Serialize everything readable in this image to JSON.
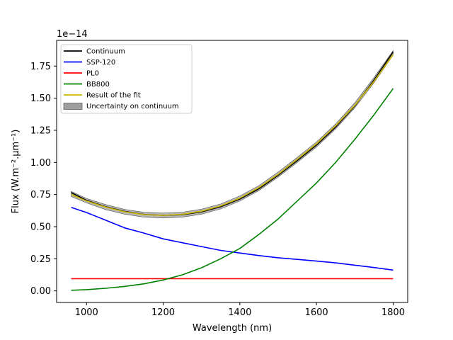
{
  "chart_data": {
    "type": "line",
    "title": "",
    "xlabel": "Wavelength (nm)",
    "ylabel": "Flux (W.m⁻².µm⁻¹)",
    "y_multiplier_label": "1e−14",
    "xlim": [
      922,
      1838
    ],
    "ylim": [
      -0.09,
      1.95
    ],
    "x_ticks": [
      1000,
      1200,
      1400,
      1600,
      1800
    ],
    "x_tick_labels": [
      "1000",
      "1200",
      "1400",
      "1600",
      "1800"
    ],
    "y_ticks": [
      0.0,
      0.25,
      0.5,
      0.75,
      1.0,
      1.25,
      1.5,
      1.75
    ],
    "y_tick_labels": [
      "0.00",
      "0.25",
      "0.50",
      "0.75",
      "1.00",
      "1.25",
      "1.50",
      "1.75"
    ],
    "legend_position": "upper-left",
    "legend": [
      {
        "label": "Continuum",
        "color": "#000000",
        "kind": "line"
      },
      {
        "label": "SSP-120",
        "color": "#0000ff",
        "kind": "line"
      },
      {
        "label": "PL0",
        "color": "#ff0000",
        "kind": "line"
      },
      {
        "label": "BB800",
        "color": "#008000",
        "kind": "line"
      },
      {
        "label": "Result of the fit",
        "color": "#ccb800",
        "kind": "line"
      },
      {
        "label": "Uncertainty on continuum",
        "color": "#9e9e9e",
        "kind": "patch"
      }
    ],
    "x": [
      960,
      1000,
      1050,
      1100,
      1150,
      1200,
      1250,
      1300,
      1350,
      1400,
      1450,
      1500,
      1550,
      1600,
      1650,
      1700,
      1750,
      1800
    ],
    "series": [
      {
        "name": "Continuum",
        "color": "#000000",
        "values": [
          0.765,
          0.705,
          0.655,
          0.618,
          0.595,
          0.588,
          0.593,
          0.615,
          0.655,
          0.715,
          0.795,
          0.9,
          1.015,
          1.135,
          1.275,
          1.44,
          1.64,
          1.86
        ]
      },
      {
        "name": "SSP-120",
        "color": "#0000ff",
        "values": [
          0.65,
          0.61,
          0.55,
          0.49,
          0.45,
          0.405,
          0.375,
          0.345,
          0.315,
          0.295,
          0.275,
          0.258,
          0.245,
          0.232,
          0.218,
          0.2,
          0.182,
          0.162
        ]
      },
      {
        "name": "PL0",
        "color": "#ff0000",
        "values": [
          0.095,
          0.095,
          0.095,
          0.095,
          0.095,
          0.095,
          0.095,
          0.095,
          0.095,
          0.095,
          0.095,
          0.095,
          0.095,
          0.095,
          0.095,
          0.095,
          0.095,
          0.095
        ]
      },
      {
        "name": "BB800",
        "color": "#008000",
        "values": [
          0.005,
          0.01,
          0.02,
          0.035,
          0.055,
          0.085,
          0.125,
          0.18,
          0.25,
          0.33,
          0.44,
          0.56,
          0.7,
          0.84,
          1.0,
          1.18,
          1.37,
          1.575
        ]
      },
      {
        "name": "Result of the fit",
        "color": "#ccb800",
        "values": [
          0.75,
          0.7,
          0.652,
          0.615,
          0.593,
          0.588,
          0.596,
          0.62,
          0.662,
          0.722,
          0.805,
          0.908,
          1.025,
          1.145,
          1.285,
          1.445,
          1.63,
          1.84
        ]
      }
    ],
    "uncertainty": {
      "name": "Uncertainty on continuum",
      "color": "#9e9e9e",
      "lower": [
        0.735,
        0.685,
        0.633,
        0.597,
        0.574,
        0.567,
        0.574,
        0.597,
        0.638,
        0.699,
        0.781,
        0.886,
        1.0,
        1.12,
        1.26,
        1.425,
        1.62,
        1.835
      ],
      "upper": [
        0.775,
        0.72,
        0.672,
        0.634,
        0.612,
        0.606,
        0.613,
        0.636,
        0.677,
        0.739,
        0.82,
        0.925,
        1.04,
        1.16,
        1.3,
        1.465,
        1.66,
        1.87
      ]
    }
  }
}
